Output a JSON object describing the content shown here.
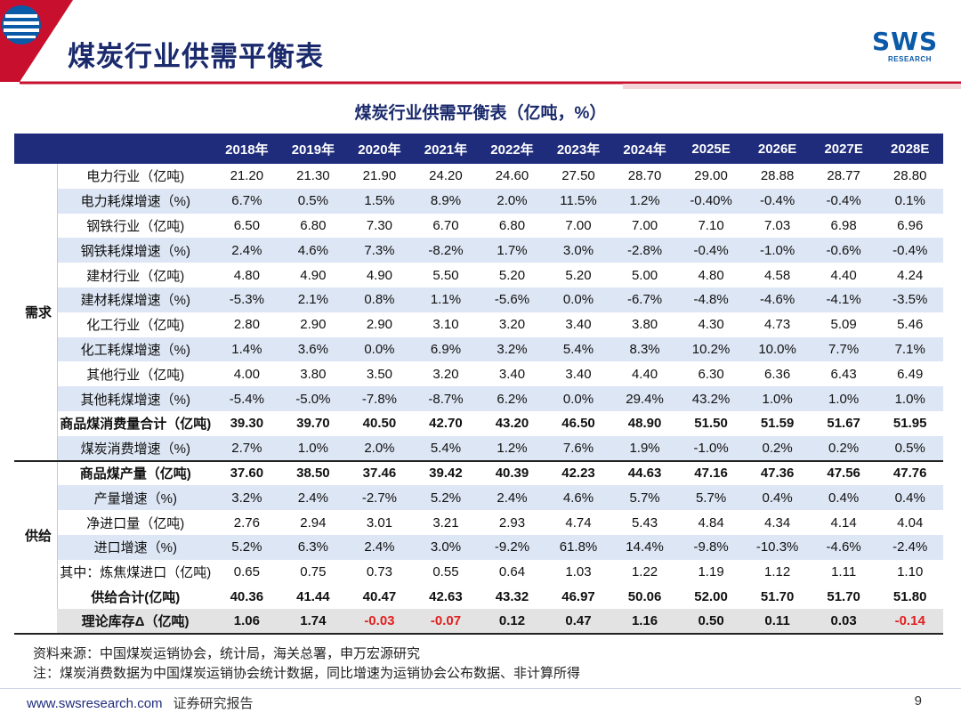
{
  "header": {
    "title": "煤炭行业供需平衡表"
  },
  "logo": {
    "name": "SWS",
    "sub": "RESEARCH"
  },
  "table_title": "煤炭行业供需平衡表（亿吨，%）",
  "columns": [
    "2018年",
    "2019年",
    "2020年",
    "2021年",
    "2022年",
    "2023年",
    "2024年",
    "2025E",
    "2026E",
    "2027E",
    "2028E"
  ],
  "groups": {
    "demand": "需求",
    "supply": "供给"
  },
  "demand_rows": [
    {
      "label": "电力行业（亿吨)",
      "values": [
        "21.20",
        "21.30",
        "21.90",
        "24.20",
        "24.60",
        "27.50",
        "28.70",
        "29.00",
        "28.88",
        "28.77",
        "28.80"
      ]
    },
    {
      "label": "电力耗煤增速（%)",
      "values": [
        "6.7%",
        "0.5%",
        "1.5%",
        "8.9%",
        "2.0%",
        "11.5%",
        "1.2%",
        "-0.40%",
        "-0.4%",
        "-0.4%",
        "0.1%"
      ]
    },
    {
      "label": "钢铁行业（亿吨)",
      "values": [
        "6.50",
        "6.80",
        "7.30",
        "6.70",
        "6.80",
        "7.00",
        "7.00",
        "7.10",
        "7.03",
        "6.98",
        "6.96"
      ]
    },
    {
      "label": "钢铁耗煤增速（%)",
      "values": [
        "2.4%",
        "4.6%",
        "7.3%",
        "-8.2%",
        "1.7%",
        "3.0%",
        "-2.8%",
        "-0.4%",
        "-1.0%",
        "-0.6%",
        "-0.4%"
      ]
    },
    {
      "label": "建材行业（亿吨)",
      "values": [
        "4.80",
        "4.90",
        "4.90",
        "5.50",
        "5.20",
        "5.20",
        "5.00",
        "4.80",
        "4.58",
        "4.40",
        "4.24"
      ]
    },
    {
      "label": "建材耗煤增速（%)",
      "values": [
        "-5.3%",
        "2.1%",
        "0.8%",
        "1.1%",
        "-5.6%",
        "0.0%",
        "-6.7%",
        "-4.8%",
        "-4.6%",
        "-4.1%",
        "-3.5%"
      ]
    },
    {
      "label": "化工行业（亿吨)",
      "values": [
        "2.80",
        "2.90",
        "2.90",
        "3.10",
        "3.20",
        "3.40",
        "3.80",
        "4.30",
        "4.73",
        "5.09",
        "5.46"
      ]
    },
    {
      "label": "化工耗煤增速（%)",
      "values": [
        "1.4%",
        "3.6%",
        "0.0%",
        "6.9%",
        "3.2%",
        "5.4%",
        "8.3%",
        "10.2%",
        "10.0%",
        "7.7%",
        "7.1%"
      ]
    },
    {
      "label": "其他行业（亿吨)",
      "values": [
        "4.00",
        "3.80",
        "3.50",
        "3.20",
        "3.40",
        "3.40",
        "4.40",
        "6.30",
        "6.36",
        "6.43",
        "6.49"
      ]
    },
    {
      "label": "其他耗煤增速（%)",
      "values": [
        "-5.4%",
        "-5.0%",
        "-7.8%",
        "-8.7%",
        "6.2%",
        "0.0%",
        "29.4%",
        "43.2%",
        "1.0%",
        "1.0%",
        "1.0%"
      ]
    },
    {
      "label": "商品煤消费量合计（亿吨)",
      "values": [
        "39.30",
        "39.70",
        "40.50",
        "42.70",
        "43.20",
        "46.50",
        "48.90",
        "51.50",
        "51.59",
        "51.67",
        "51.95"
      ]
    },
    {
      "label": "煤炭消费增速（%)",
      "values": [
        "2.7%",
        "1.0%",
        "2.0%",
        "5.4%",
        "1.2%",
        "7.6%",
        "1.9%",
        "-1.0%",
        "0.2%",
        "0.2%",
        "0.5%"
      ]
    }
  ],
  "supply_rows": [
    {
      "label": "商品煤产量（亿吨)",
      "values": [
        "37.60",
        "38.50",
        "37.46",
        "39.42",
        "40.39",
        "42.23",
        "44.63",
        "47.16",
        "47.36",
        "47.56",
        "47.76"
      ]
    },
    {
      "label": "产量增速（%)",
      "values": [
        "3.2%",
        "2.4%",
        "-2.7%",
        "5.2%",
        "2.4%",
        "4.6%",
        "5.7%",
        "5.7%",
        "0.4%",
        "0.4%",
        "0.4%"
      ]
    },
    {
      "label": "净进口量（亿吨)",
      "values": [
        "2.76",
        "2.94",
        "3.01",
        "3.21",
        "2.93",
        "4.74",
        "5.43",
        "4.84",
        "4.34",
        "4.14",
        "4.04"
      ]
    },
    {
      "label": "进口增速（%)",
      "values": [
        "5.2%",
        "6.3%",
        "2.4%",
        "3.0%",
        "-9.2%",
        "61.8%",
        "14.4%",
        "-9.8%",
        "-10.3%",
        "-4.6%",
        "-2.4%"
      ]
    },
    {
      "label": "其中：炼焦煤进口（亿吨)",
      "values": [
        "0.65",
        "0.75",
        "0.73",
        "0.55",
        "0.64",
        "1.03",
        "1.22",
        "1.19",
        "1.12",
        "1.11",
        "1.10"
      ]
    },
    {
      "label": "供给合计(亿吨)",
      "values": [
        "40.36",
        "41.44",
        "40.47",
        "42.63",
        "43.32",
        "46.97",
        "50.06",
        "52.00",
        "51.70",
        "51.70",
        "51.80"
      ]
    }
  ],
  "inventory_row": {
    "label": "理论库存Δ（亿吨)",
    "values": [
      "1.06",
      "1.74",
      "-0.03",
      "-0.07",
      "0.12",
      "0.47",
      "1.16",
      "0.50",
      "0.11",
      "0.03",
      "-0.14"
    ]
  },
  "notes": [
    "资料来源：中国煤炭运销协会，统计局，海关总署，申万宏源研究",
    "注：煤炭消费数据为中国煤炭运销协会统计数据，同比增速为运销协会公布数据、非计算所得"
  ],
  "footer": {
    "url": "www.swsresearch.com",
    "label": "证券研究报告",
    "page": "9"
  },
  "colors": {
    "header_bg": "#1f2c7b",
    "accent_red": "#c8102e",
    "row_alt": "#dde6f4",
    "negative": "#e02020"
  }
}
